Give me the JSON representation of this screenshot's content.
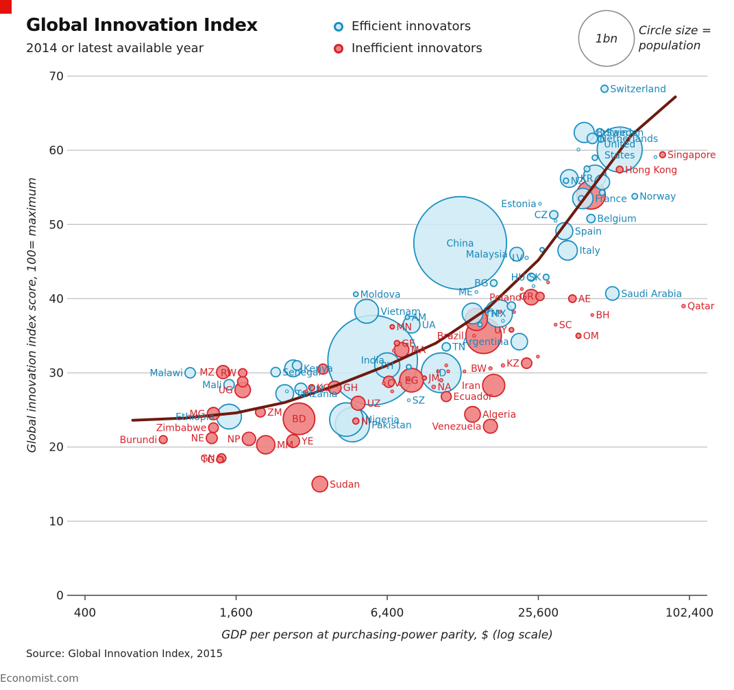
{
  "header": {
    "title": "Global Innovation Index",
    "subtitle": "2014 or latest available year"
  },
  "legend": {
    "efficient_label": "Efficient innovators",
    "inefficient_label": "Inefficient innovators",
    "size_bubble_label": "1bn",
    "size_note_line1": "Circle size =",
    "size_note_line2": "population"
  },
  "colors": {
    "efficient_fill": "#cdeaf5",
    "efficient_stroke": "#1b8fc0",
    "efficient_text": "#1a86b8",
    "inefficient_fill": "#f08080",
    "inefficient_stroke": "#d3242b",
    "inefficient_text": "#d3242b",
    "trend": "#6e1a0f",
    "brand_red": "#e3120b"
  },
  "footer": {
    "source": "Source: Global Innovation Index, 2015",
    "brand": "Economist.com"
  },
  "chart_data": {
    "type": "scatter",
    "xlabel": "GDP per person at purchasing-power parity, $ (log scale)",
    "ylabel": "Global innovation index score, 100= maximum",
    "x_scale": "log2",
    "xlim": [
      400,
      102400
    ],
    "ylim": [
      0,
      70
    ],
    "x_ticks": [
      400,
      1600,
      6400,
      25600,
      102400
    ],
    "x_tick_labels": [
      "400",
      "1,600",
      "6,400",
      "25,600",
      "102,400"
    ],
    "y_ticks": [
      0,
      10,
      20,
      30,
      40,
      50,
      60,
      70
    ],
    "y_tick_labels": [
      "0",
      "10",
      "20",
      "30",
      "40",
      "50",
      "60",
      "70"
    ],
    "grid": true,
    "size_legend_population_bn": 1,
    "trend_curve": [
      [
        620,
        23.6
      ],
      [
        1000,
        23.9
      ],
      [
        1600,
        24.6
      ],
      [
        2500,
        26.0
      ],
      [
        4000,
        28.3
      ],
      [
        6400,
        31.0
      ],
      [
        10000,
        34.0
      ],
      [
        16000,
        38.6
      ],
      [
        25600,
        45.2
      ],
      [
        40000,
        54.0
      ],
      [
        60000,
        62.0
      ],
      [
        90000,
        67.2
      ]
    ],
    "series": [
      {
        "name": "Efficient innovators",
        "points": [
          {
            "label": "Switzerland",
            "x": 47000,
            "y": 68.3,
            "pop": 0.008
          },
          {
            "label": "Britain",
            "x": 39000,
            "y": 62.4,
            "pop": 0.064
          },
          {
            "label": "Sweden",
            "x": 45000,
            "y": 62.4,
            "pop": 0.0097
          },
          {
            "label": "",
            "x": 45500,
            "y": 61.5,
            "pop": 0.0055
          },
          {
            "label": "Netherlands",
            "x": 42000,
            "y": 61.6,
            "pop": 0.017
          },
          {
            "label": "",
            "x": 37000,
            "y": 60.1,
            "pop": 0.0006
          },
          {
            "label": "United States",
            "x": 54000,
            "y": 60.1,
            "pop": 0.32
          },
          {
            "label": "",
            "x": 75000,
            "y": 59.1,
            "pop": 0.0006
          },
          {
            "label": "",
            "x": 43000,
            "y": 59.0,
            "pop": 0.0047
          },
          {
            "label": "KR",
            "x": 34000,
            "y": 56.2,
            "pop": 0.05
          },
          {
            "label": "",
            "x": 40000,
            "y": 57.5,
            "pop": 0.0054
          },
          {
            "label": "",
            "x": 43000,
            "y": 56.5,
            "pop": 0.08
          },
          {
            "label": "NZ",
            "x": 33000,
            "y": 55.9,
            "pop": 0.0045
          },
          {
            "label": "",
            "x": 46000,
            "y": 55.7,
            "pop": 0.035
          },
          {
            "label": "France",
            "x": 38500,
            "y": 53.5,
            "pop": 0.066
          },
          {
            "label": "",
            "x": 46000,
            "y": 54.3,
            "pop": 0.005
          },
          {
            "label": "",
            "x": 38000,
            "y": 53.5,
            "pop": 0.0053
          },
          {
            "label": "Norway",
            "x": 62000,
            "y": 53.8,
            "pop": 0.005
          },
          {
            "label": "Estonia",
            "x": 26000,
            "y": 52.8,
            "pop": 0.0013
          },
          {
            "label": "CZ",
            "x": 29500,
            "y": 51.3,
            "pop": 0.011
          },
          {
            "label": "",
            "x": 30000,
            "y": 50.5,
            "pop": 0.0003
          },
          {
            "label": "Belgium",
            "x": 41500,
            "y": 50.8,
            "pop": 0.011
          },
          {
            "label": "Spain",
            "x": 32500,
            "y": 49.1,
            "pop": 0.046
          },
          {
            "label": "China",
            "x": 12500,
            "y": 47.5,
            "pop": 1.36
          },
          {
            "label": "Malaysia",
            "x": 21000,
            "y": 46.0,
            "pop": 0.03
          },
          {
            "label": "LV",
            "x": 23000,
            "y": 45.5,
            "pop": 0.002
          },
          {
            "label": "",
            "x": 26500,
            "y": 46.6,
            "pop": 0.003
          },
          {
            "label": "Italy",
            "x": 33500,
            "y": 46.5,
            "pop": 0.06
          },
          {
            "label": "HU",
            "x": 24000,
            "y": 42.9,
            "pop": 0.0099
          },
          {
            "label": "SK",
            "x": 27500,
            "y": 42.9,
            "pop": 0.0054
          },
          {
            "label": "",
            "x": 24500,
            "y": 41.7,
            "pop": 0.0006
          },
          {
            "label": "Saudi Arabia",
            "x": 50500,
            "y": 40.7,
            "pop": 0.029
          },
          {
            "label": "ME",
            "x": 14500,
            "y": 40.9,
            "pop": 0.0006
          },
          {
            "label": "BG",
            "x": 17000,
            "y": 42.1,
            "pop": 0.0072
          },
          {
            "label": "",
            "x": 16000,
            "y": 38.5,
            "pop": 0.0043
          },
          {
            "label": "Moldova",
            "x": 4800,
            "y": 40.6,
            "pop": 0.0035
          },
          {
            "label": "MX",
            "x": 17800,
            "y": 38.0,
            "pop": 0.12
          },
          {
            "label": "",
            "x": 16500,
            "y": 38.5,
            "pop": 0.0007
          },
          {
            "label": "",
            "x": 18500,
            "y": 37.0,
            "pop": 0.0013
          },
          {
            "label": "",
            "x": 20000,
            "y": 39.0,
            "pop": 0.011
          },
          {
            "label": "Vietnam",
            "x": 5300,
            "y": 38.3,
            "pop": 0.09
          },
          {
            "label": "TH",
            "x": 14000,
            "y": 38.0,
            "pop": 0.068
          },
          {
            "label": "",
            "x": 15000,
            "y": 36.5,
            "pop": 0.0029
          },
          {
            "label": "AM",
            "x": 7700,
            "y": 37.5,
            "pop": 0.003
          },
          {
            "label": "UA",
            "x": 8000,
            "y": 36.5,
            "pop": 0.045
          },
          {
            "label": "Argentina",
            "x": 21500,
            "y": 34.2,
            "pop": 0.043
          },
          {
            "label": "India",
            "x": 5600,
            "y": 31.7,
            "pop": 1.27
          },
          {
            "label": "PH",
            "x": 6400,
            "y": 31.0,
            "pop": 0.1
          },
          {
            "label": "ID",
            "x": 10500,
            "y": 30.0,
            "pop": 0.25
          },
          {
            "label": "TN",
            "x": 11000,
            "y": 33.5,
            "pop": 0.011
          },
          {
            "label": "",
            "x": 7800,
            "y": 30.8,
            "pop": 0.0035
          },
          {
            "label": "Kenya",
            "x": 2700,
            "y": 30.6,
            "pop": 0.045
          },
          {
            "label": "",
            "x": 2800,
            "y": 31.0,
            "pop": 0.0141
          },
          {
            "label": "Senegal",
            "x": 2300,
            "y": 30.1,
            "pop": 0.014
          },
          {
            "label": "Malawi",
            "x": 1050,
            "y": 30.0,
            "pop": 0.017
          },
          {
            "label": "CM",
            "x": 2900,
            "y": 27.8,
            "pop": 0.023
          },
          {
            "label": "",
            "x": 2550,
            "y": 27.5,
            "pop": 0.0012
          },
          {
            "label": "Mali",
            "x": 1500,
            "y": 28.4,
            "pop": 0.017
          },
          {
            "label": "Tanzania",
            "x": 2500,
            "y": 27.2,
            "pop": 0.05
          },
          {
            "label": "Ethiopia",
            "x": 1500,
            "y": 24.1,
            "pop": 0.097
          },
          {
            "label": "Pakistan",
            "x": 4650,
            "y": 23.0,
            "pop": 0.185
          },
          {
            "label": "Nigeria",
            "x": 4400,
            "y": 23.7,
            "pop": 0.177
          },
          {
            "label": "SZ",
            "x": 7800,
            "y": 26.3,
            "pop": 0.0013
          }
        ]
      },
      {
        "name": "Inefficient innovators",
        "points": [
          {
            "label": "Singapore",
            "x": 80000,
            "y": 59.4,
            "pop": 0.0055
          },
          {
            "label": "Hong Kong",
            "x": 54000,
            "y": 57.4,
            "pop": 0.0073
          },
          {
            "label": "",
            "x": 41500,
            "y": 54.0,
            "pop": 0.13
          },
          {
            "label": "",
            "x": 22000,
            "y": 41.3,
            "pop": 0.0013
          },
          {
            "label": "GR",
            "x": 26000,
            "y": 40.3,
            "pop": 0.011
          },
          {
            "label": "Poland",
            "x": 24000,
            "y": 40.2,
            "pop": 0.038
          },
          {
            "label": "",
            "x": 28000,
            "y": 42.2,
            "pop": 0.0004
          },
          {
            "label": "AE",
            "x": 35000,
            "y": 40.0,
            "pop": 0.009
          },
          {
            "label": "BH",
            "x": 42000,
            "y": 37.8,
            "pop": 0.0013
          },
          {
            "label": "Qatar",
            "x": 97000,
            "y": 39.0,
            "pop": 0.0022
          },
          {
            "label": "SC",
            "x": 30000,
            "y": 36.5,
            "pop": 0.0001
          },
          {
            "label": "OM",
            "x": 37000,
            "y": 35.0,
            "pop": 0.004
          },
          {
            "label": "UY",
            "x": 20000,
            "y": 35.8,
            "pop": 0.0034
          },
          {
            "label": "",
            "x": 20500,
            "y": 38.2,
            "pop": 0.0004
          },
          {
            "label": "",
            "x": 18000,
            "y": 38.2,
            "pop": 0.0004
          },
          {
            "label": "Brazil",
            "x": 15500,
            "y": 35.0,
            "pop": 0.2
          },
          {
            "label": "",
            "x": 14500,
            "y": 37.2,
            "pop": 0.077
          },
          {
            "label": "",
            "x": 14200,
            "y": 35.0,
            "pop": 0.0013
          },
          {
            "label": "KZ",
            "x": 23000,
            "y": 31.3,
            "pop": 0.017
          },
          {
            "label": "BW",
            "x": 16500,
            "y": 30.6,
            "pop": 0.002
          },
          {
            "label": "",
            "x": 18500,
            "y": 31.0,
            "pop": 0.002
          },
          {
            "label": "",
            "x": 25500,
            "y": 32.2,
            "pop": 0.0001
          },
          {
            "label": "Iran",
            "x": 17000,
            "y": 28.3,
            "pop": 0.078
          },
          {
            "label": "",
            "x": 13000,
            "y": 30.2,
            "pop": 0.0008
          },
          {
            "label": "",
            "x": 11000,
            "y": 31.0,
            "pop": 0.0004
          },
          {
            "label": "",
            "x": 10200,
            "y": 30.2,
            "pop": 0.0006
          },
          {
            "label": "JM",
            "x": 9000,
            "y": 29.3,
            "pop": 0.0027
          },
          {
            "label": "",
            "x": 10500,
            "y": 29.0,
            "pop": 0.002
          },
          {
            "label": "NA",
            "x": 9800,
            "y": 28.1,
            "pop": 0.0023
          },
          {
            "label": "EG",
            "x": 8000,
            "y": 29.0,
            "pop": 0.089
          },
          {
            "label": "Ecuador",
            "x": 11000,
            "y": 26.8,
            "pop": 0.016
          },
          {
            "label": "Algeria",
            "x": 14000,
            "y": 24.4,
            "pop": 0.039
          },
          {
            "label": "Venezuela",
            "x": 16500,
            "y": 22.8,
            "pop": 0.031
          },
          {
            "label": "",
            "x": 11200,
            "y": 30.2,
            "pop": 0.0007
          },
          {
            "label": "MN",
            "x": 6700,
            "y": 36.2,
            "pop": 0.003
          },
          {
            "label": "GE",
            "x": 7000,
            "y": 34.0,
            "pop": 0.0045
          },
          {
            "label": "MA",
            "x": 7300,
            "y": 33.1,
            "pop": 0.034
          },
          {
            "label": "",
            "x": 6800,
            "y": 33.0,
            "pop": 0.0004
          },
          {
            "label": "",
            "x": 7800,
            "y": 29.1,
            "pop": 0.0011
          },
          {
            "label": "",
            "x": 7200,
            "y": 28.5,
            "pop": 0.0004
          },
          {
            "label": "CV",
            "x": 6200,
            "y": 28.6,
            "pop": 0.0005
          },
          {
            "label": "",
            "x": 6700,
            "y": 27.5,
            "pop": 0.0014
          },
          {
            "label": "",
            "x": 6500,
            "y": 28.8,
            "pop": 0.02
          },
          {
            "label": "UZ",
            "x": 4900,
            "y": 25.9,
            "pop": 0.031
          },
          {
            "label": "NI",
            "x": 4800,
            "y": 23.5,
            "pop": 0.006
          },
          {
            "label": "GH",
            "x": 3950,
            "y": 28.0,
            "pop": 0.027
          },
          {
            "label": "KG",
            "x": 3200,
            "y": 28.0,
            "pop": 0.0058
          },
          {
            "label": "",
            "x": 3050,
            "y": 27.5,
            "pop": 0.0004
          },
          {
            "label": "",
            "x": 3000,
            "y": 27.4,
            "pop": 0.0015
          },
          {
            "label": "",
            "x": 3550,
            "y": 30.5,
            "pop": 0.016
          },
          {
            "label": "BD",
            "x": 2850,
            "y": 23.8,
            "pop": 0.158
          },
          {
            "label": "ZM",
            "x": 2000,
            "y": 24.7,
            "pop": 0.015
          },
          {
            "label": "",
            "x": 1700,
            "y": 28.8,
            "pop": 0.017
          },
          {
            "label": "UG",
            "x": 1700,
            "y": 27.7,
            "pop": 0.038
          },
          {
            "label": "RW",
            "x": 1700,
            "y": 30.0,
            "pop": 0.011
          },
          {
            "label": "MZ",
            "x": 1420,
            "y": 30.1,
            "pop": 0.027
          },
          {
            "label": "MG",
            "x": 1300,
            "y": 24.5,
            "pop": 0.024
          },
          {
            "label": "NP",
            "x": 1800,
            "y": 21.1,
            "pop": 0.028
          },
          {
            "label": "MM",
            "x": 2100,
            "y": 20.3,
            "pop": 0.053
          },
          {
            "label": "YE",
            "x": 2700,
            "y": 20.8,
            "pop": 0.026
          },
          {
            "label": "Zimbabwe",
            "x": 1300,
            "y": 22.6,
            "pop": 0.015
          },
          {
            "label": "NE",
            "x": 1280,
            "y": 21.2,
            "pop": 0.019
          },
          {
            "label": "Burundi",
            "x": 820,
            "y": 21.0,
            "pop": 0.01
          },
          {
            "label": "GN",
            "x": 1400,
            "y": 18.5,
            "pop": 0.012
          },
          {
            "label": "TG",
            "x": 1380,
            "y": 18.3,
            "pop": 0.007
          },
          {
            "label": "Sudan",
            "x": 3450,
            "y": 15.0,
            "pop": 0.039
          }
        ]
      }
    ]
  }
}
